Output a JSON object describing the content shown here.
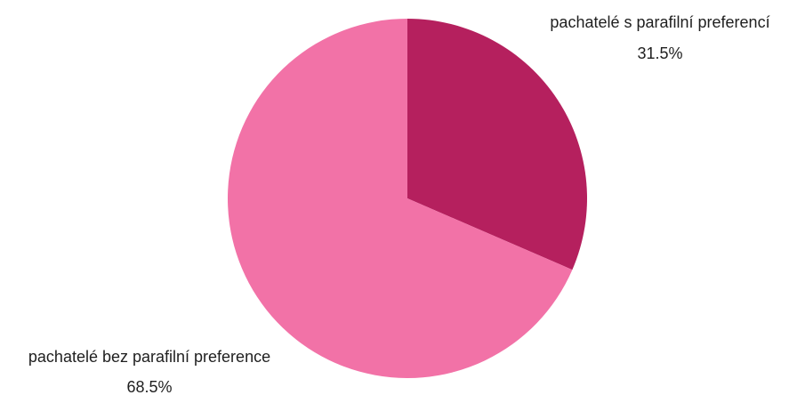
{
  "chart_data": {
    "type": "pie",
    "title": "",
    "slices": [
      {
        "label": "pachatelé s parafilní preferencí",
        "value": 31.5,
        "value_text": "31.5%",
        "color": "#b5205e"
      },
      {
        "label": "pachatelé bez parafilní preference",
        "value": 68.5,
        "value_text": "68.5%",
        "color": "#f272a7"
      }
    ],
    "start_angle": "12 o'clock",
    "direction": "clockwise",
    "legend": "none"
  }
}
